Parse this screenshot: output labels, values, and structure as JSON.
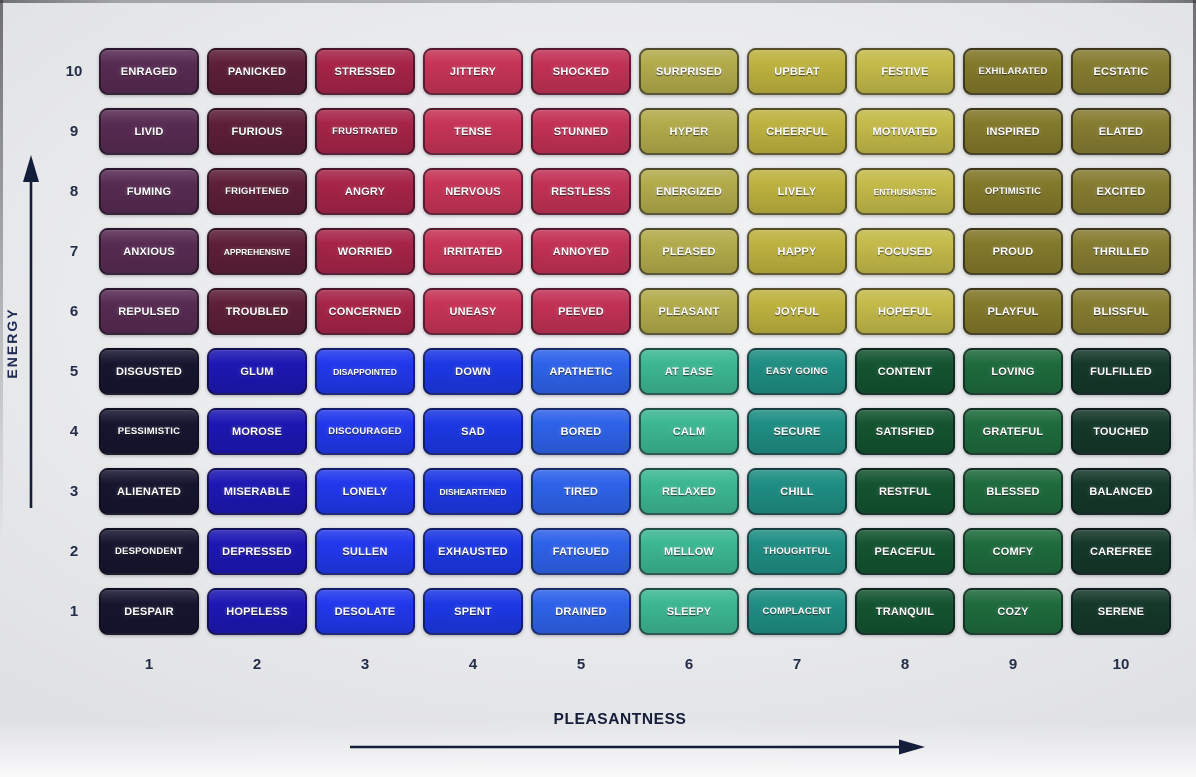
{
  "chart_data": {
    "type": "heatmap",
    "xlabel": "PLEASANTNESS",
    "ylabel": "ENERGY",
    "x_ticks": [
      "1",
      "2",
      "3",
      "4",
      "5",
      "6",
      "7",
      "8",
      "9",
      "10"
    ],
    "y_ticks": [
      "10",
      "9",
      "8",
      "7",
      "6",
      "5",
      "4",
      "3",
      "2",
      "1"
    ],
    "rows": [
      {
        "energy": 10,
        "cells": [
          "ENRAGED",
          "PANICKED",
          "STRESSED",
          "JITTERY",
          "SHOCKED",
          "SURPRISED",
          "UPBEAT",
          "FESTIVE",
          "EXHILARATED",
          "ECSTATIC"
        ]
      },
      {
        "energy": 9,
        "cells": [
          "LIVID",
          "FURIOUS",
          "FRUSTRATED",
          "TENSE",
          "STUNNED",
          "HYPER",
          "CHEERFUL",
          "MOTIVATED",
          "INSPIRED",
          "ELATED"
        ]
      },
      {
        "energy": 8,
        "cells": [
          "FUMING",
          "FRIGHTENED",
          "ANGRY",
          "NERVOUS",
          "RESTLESS",
          "ENERGIZED",
          "LIVELY",
          "ENTHUSIASTIC",
          "OPTIMISTIC",
          "EXCITED"
        ]
      },
      {
        "energy": 7,
        "cells": [
          "ANXIOUS",
          "APPREHENSIVE",
          "WORRIED",
          "IRRITATED",
          "ANNOYED",
          "PLEASED",
          "HAPPY",
          "FOCUSED",
          "PROUD",
          "THRILLED"
        ]
      },
      {
        "energy": 6,
        "cells": [
          "REPULSED",
          "TROUBLED",
          "CONCERNED",
          "UNEASY",
          "PEEVED",
          "PLEASANT",
          "JOYFUL",
          "HOPEFUL",
          "PLAYFUL",
          "BLISSFUL"
        ]
      },
      {
        "energy": 5,
        "cells": [
          "DISGUSTED",
          "GLUM",
          "DISAPPOINTED",
          "DOWN",
          "APATHETIC",
          "AT EASE",
          "EASY GOING",
          "CONTENT",
          "LOVING",
          "FULFILLED"
        ]
      },
      {
        "energy": 4,
        "cells": [
          "PESSIMISTIC",
          "MOROSE",
          "DISCOURAGED",
          "SAD",
          "BORED",
          "CALM",
          "SECURE",
          "SATISFIED",
          "GRATEFUL",
          "TOUCHED"
        ]
      },
      {
        "energy": 3,
        "cells": [
          "ALIENATED",
          "MISERABLE",
          "LONELY",
          "DISHEARTENED",
          "TIRED",
          "RELAXED",
          "CHILL",
          "RESTFUL",
          "BLESSED",
          "BALANCED"
        ]
      },
      {
        "energy": 2,
        "cells": [
          "DESPONDENT",
          "DEPRESSED",
          "SULLEN",
          "EXHAUSTED",
          "FATIGUED",
          "MELLOW",
          "THOUGHTFUL",
          "PEACEFUL",
          "COMFY",
          "CAREFREE"
        ]
      },
      {
        "energy": 1,
        "cells": [
          "DESPAIR",
          "HOPELESS",
          "DESOLATE",
          "SPENT",
          "DRAINED",
          "SLEEPY",
          "COMPLACENT",
          "TRANQUIL",
          "COZY",
          "SERENE"
        ]
      }
    ],
    "column_colors_high_energy": [
      "#572b52",
      "#5d1f36",
      "#a62448",
      "#c63457",
      "#c23156",
      "#b2ab4b",
      "#bdb23f",
      "#c3ba49",
      "#82792a",
      "#857c31"
    ],
    "column_colors_low_energy": [
      "#16152f",
      "#1d17b2",
      "#2138ec",
      "#1c38e4",
      "#2e62e9",
      "#3cb791",
      "#1f8e83",
      "#135430",
      "#1e6b3d",
      "#14382a"
    ],
    "tick_color": "#232c49",
    "axis_color": "#141d3a",
    "cell_text_color": "#ffffff"
  }
}
